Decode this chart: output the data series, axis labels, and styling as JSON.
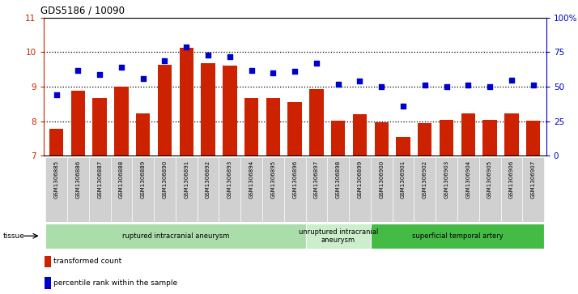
{
  "title": "GDS5186 / 10090",
  "samples": [
    "GSM1306885",
    "GSM1306886",
    "GSM1306887",
    "GSM1306888",
    "GSM1306889",
    "GSM1306890",
    "GSM1306891",
    "GSM1306892",
    "GSM1306893",
    "GSM1306894",
    "GSM1306895",
    "GSM1306896",
    "GSM1306897",
    "GSM1306898",
    "GSM1306899",
    "GSM1306900",
    "GSM1306901",
    "GSM1306902",
    "GSM1306903",
    "GSM1306904",
    "GSM1306905",
    "GSM1306906",
    "GSM1306907"
  ],
  "bar_values": [
    7.79,
    8.88,
    8.67,
    9.01,
    8.22,
    9.63,
    10.12,
    9.68,
    9.62,
    8.68,
    8.68,
    8.55,
    8.92,
    8.02,
    8.2,
    7.97,
    7.55,
    7.95,
    8.03,
    8.22,
    8.04,
    8.22,
    8.02
  ],
  "dot_values_pct": [
    44,
    62,
    59,
    64,
    56,
    69,
    79,
    73,
    72,
    62,
    60,
    61,
    67,
    52,
    54,
    50,
    36,
    51,
    50,
    51,
    50,
    55,
    51
  ],
  "ylim_left": [
    7,
    11
  ],
  "ylim_right": [
    0,
    100
  ],
  "yticks_left": [
    7,
    8,
    9,
    10,
    11
  ],
  "yticks_right": [
    0,
    25,
    50,
    75,
    100
  ],
  "ytick_labels_right": [
    "0",
    "25",
    "50",
    "75",
    "100%"
  ],
  "bar_color": "#cc2200",
  "dot_color": "#0000cc",
  "groups": [
    {
      "label": "ruptured intracranial aneurysm",
      "start": 0,
      "end": 12,
      "color": "#aaddaa"
    },
    {
      "label": "unruptured intracranial\naneurysm",
      "start": 12,
      "end": 15,
      "color": "#cceecc"
    },
    {
      "label": "superficial temporal artery",
      "start": 15,
      "end": 23,
      "color": "#44bb44"
    }
  ],
  "tissue_label": "tissue",
  "legend_bar_label": "transformed count",
  "legend_dot_label": "percentile rank within the sample",
  "fig_bg": "#ffffff",
  "plot_bg": "#ffffff",
  "label_box_color": "#cccccc",
  "axis_color_left": "#cc2200",
  "axis_color_right": "#0000cc"
}
